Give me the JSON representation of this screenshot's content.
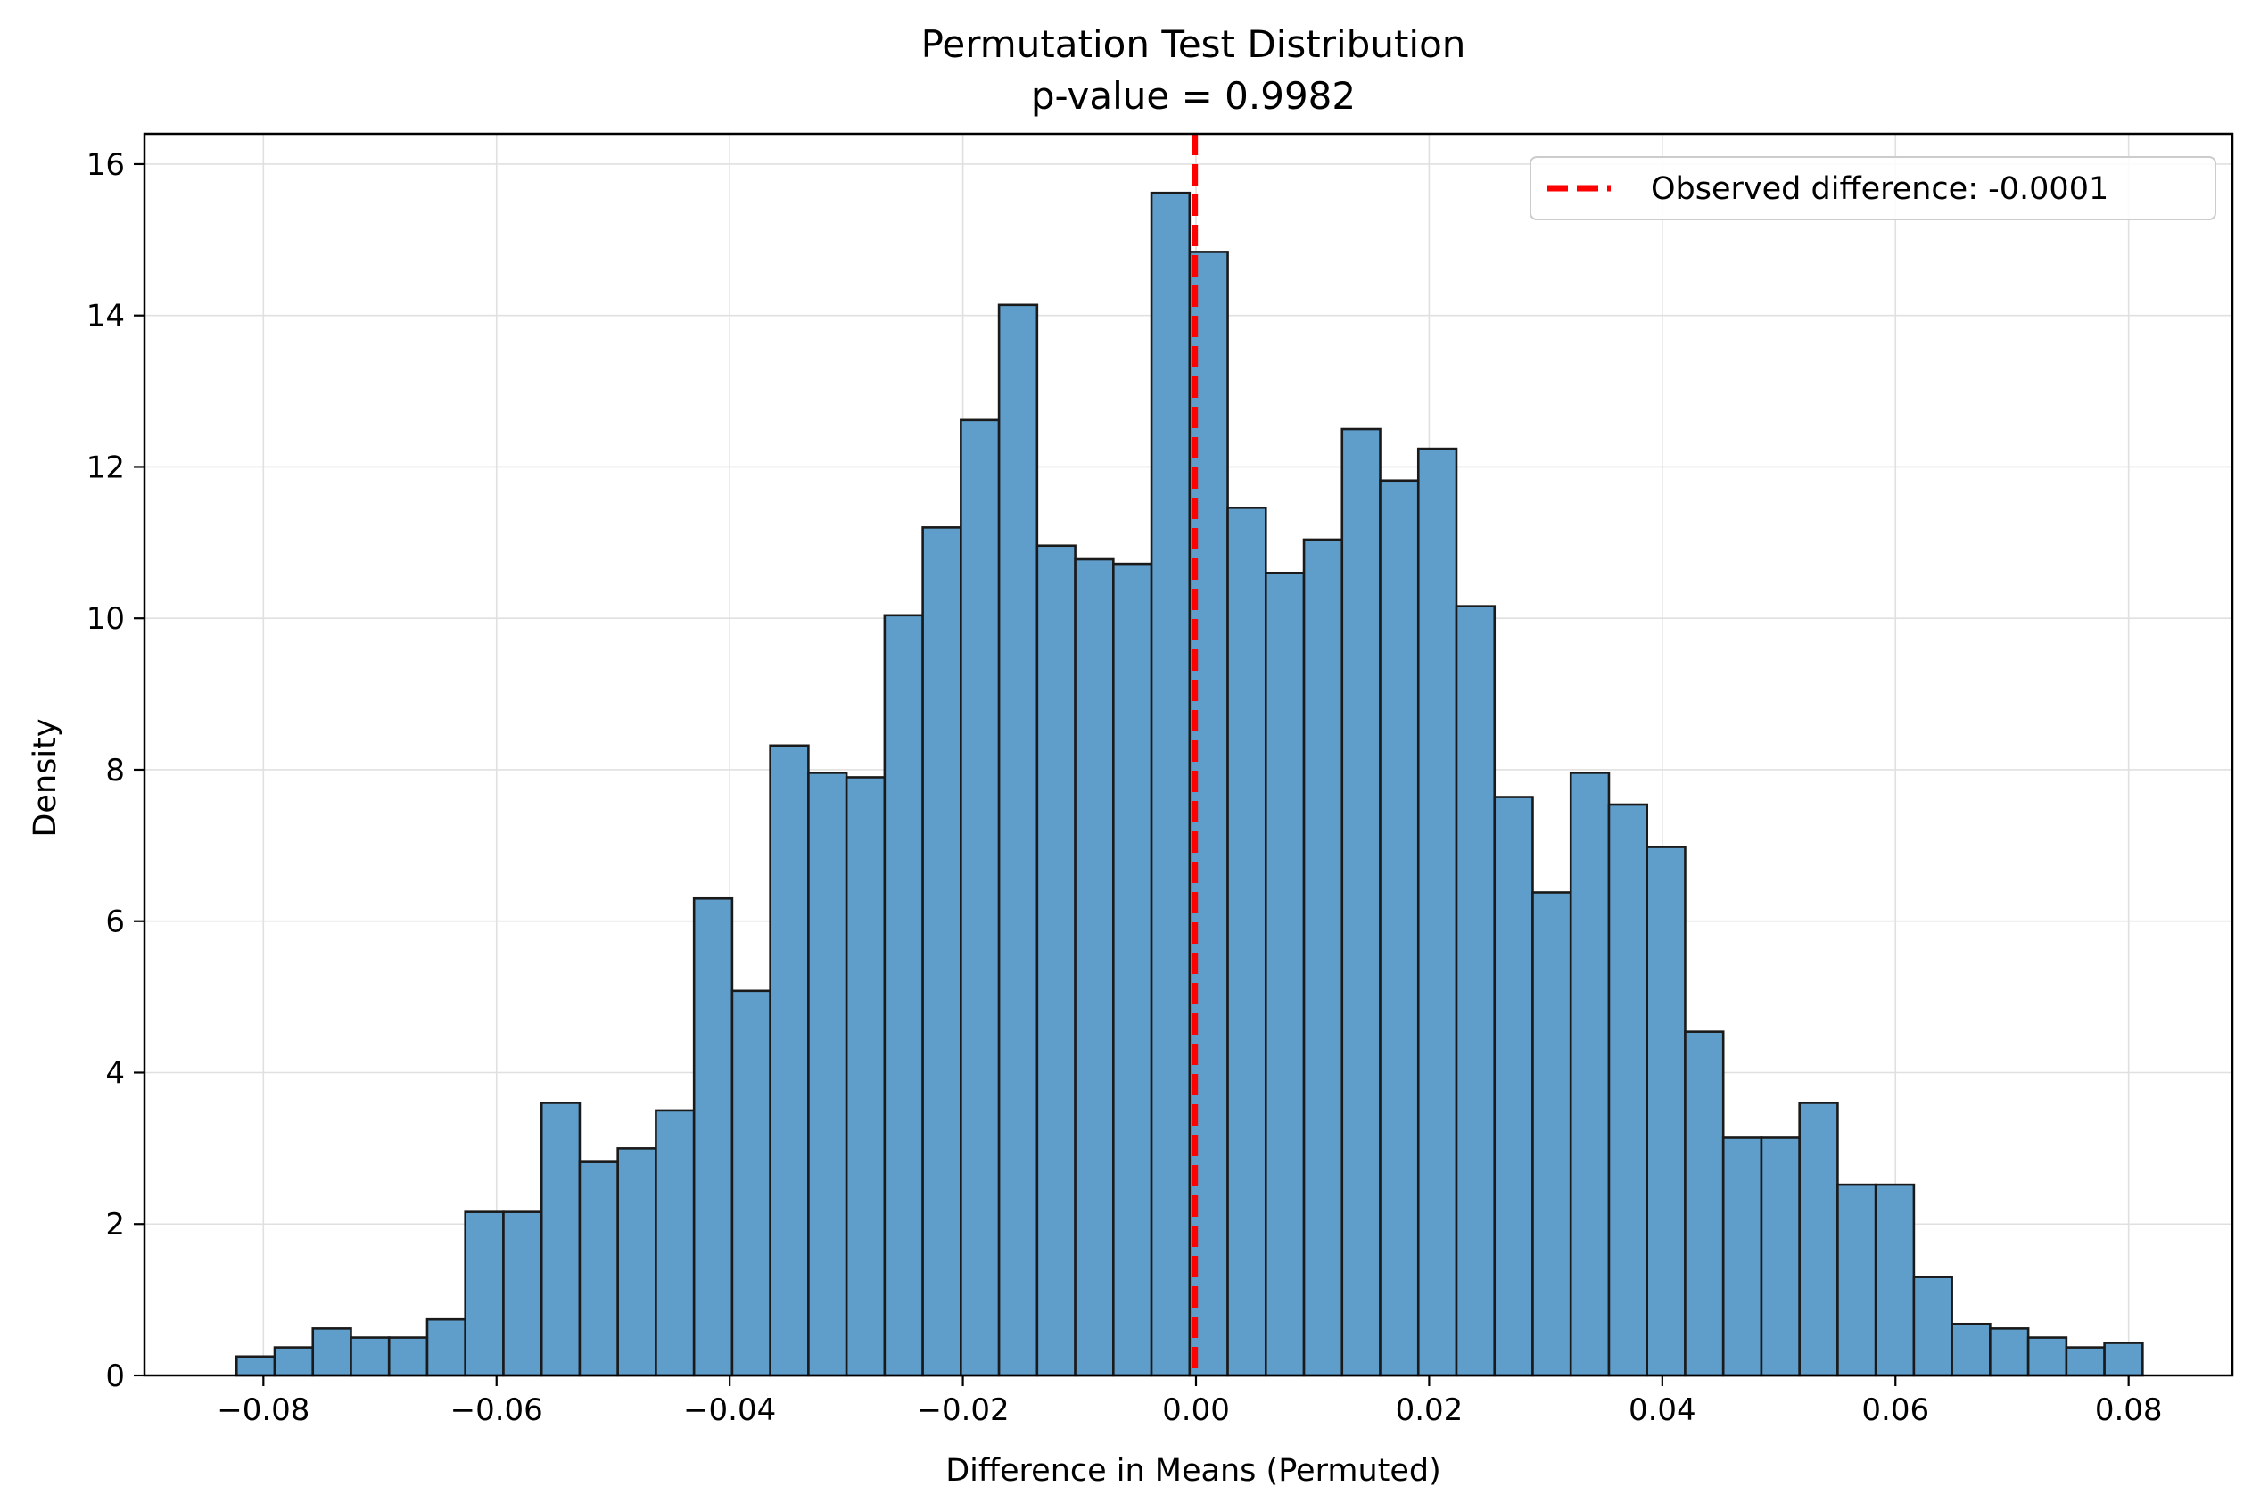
{
  "chart_data": {
    "type": "bar",
    "title": "Permutation Test Distribution",
    "subtitle": "p-value = 0.9982",
    "xlabel": "Difference in Means (Permuted)",
    "ylabel": "Density",
    "xlim": [
      -0.0902,
      0.0889
    ],
    "ylim": [
      0,
      16.4
    ],
    "grid": true,
    "legend_position": "top-right",
    "bin_start": -0.0823,
    "bin_width": 0.00327,
    "densities": [
      0.25,
      0.37,
      0.62,
      0.5,
      0.5,
      0.74,
      2.16,
      2.16,
      3.6,
      2.82,
      3.0,
      3.5,
      6.3,
      5.08,
      8.32,
      7.96,
      7.9,
      10.04,
      11.2,
      12.62,
      14.14,
      10.96,
      10.78,
      10.72,
      15.62,
      14.84,
      11.46,
      10.6,
      11.04,
      12.5,
      11.82,
      12.24,
      10.16,
      7.64,
      6.38,
      7.96,
      7.54,
      6.98,
      4.54,
      3.14,
      3.14,
      3.6,
      2.52,
      2.52,
      1.3,
      0.68,
      0.62,
      0.5,
      0.37,
      0.43
    ],
    "x_ticks": [
      {
        "value": -0.08,
        "label": "−0.08"
      },
      {
        "value": -0.06,
        "label": "−0.06"
      },
      {
        "value": -0.04,
        "label": "−0.04"
      },
      {
        "value": -0.02,
        "label": "−0.02"
      },
      {
        "value": 0.0,
        "label": "0.00"
      },
      {
        "value": 0.02,
        "label": "0.02"
      },
      {
        "value": 0.04,
        "label": "0.04"
      },
      {
        "value": 0.06,
        "label": "0.06"
      },
      {
        "value": 0.08,
        "label": "0.08"
      }
    ],
    "y_ticks": [
      {
        "value": 0,
        "label": "0"
      },
      {
        "value": 2,
        "label": "2"
      },
      {
        "value": 4,
        "label": "4"
      },
      {
        "value": 6,
        "label": "6"
      },
      {
        "value": 8,
        "label": "8"
      },
      {
        "value": 10,
        "label": "10"
      },
      {
        "value": 12,
        "label": "12"
      },
      {
        "value": 14,
        "label": "14"
      },
      {
        "value": 16,
        "label": "16"
      }
    ],
    "observed_line": {
      "value": -0.0001,
      "label": "Observed difference: -0.0001"
    },
    "colors": {
      "bar_fill": "#5f9ecb",
      "bar_edge": "#1a1a1a",
      "observed_line": "#ff0000",
      "grid": "#e0e0e0"
    }
  }
}
